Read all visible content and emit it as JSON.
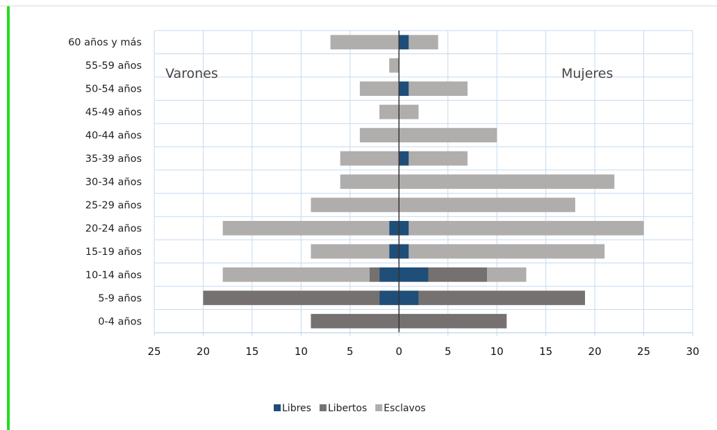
{
  "colors": {
    "libres": "#1f4e79",
    "libertos": "#767171",
    "esclavos": "#b0adad",
    "grid": "#c5d9ef",
    "axis_zero": "#333333",
    "accent_bar": "#22dd22"
  },
  "chart_data": {
    "type": "bar",
    "orientation": "horizontal",
    "layout": "population-pyramid",
    "categories": [
      "60 años y más",
      "55-59 años",
      "50-54 años",
      "45-49 años",
      "40-44 años",
      "35-39 años",
      "30-34 años",
      "25-29 años",
      "20-24 años",
      "15-19 años",
      "10-14 años",
      "5-9 años",
      "0-4 años"
    ],
    "left_label": "Varones",
    "right_label": "Mujeres",
    "x_ticks": [
      -25,
      -20,
      -15,
      -10,
      -5,
      0,
      5,
      10,
      15,
      20,
      25,
      30
    ],
    "x_tick_labels": [
      "25",
      "20",
      "15",
      "10",
      "5",
      "0",
      "5",
      "10",
      "15",
      "20",
      "25",
      "30"
    ],
    "xlim": [
      -25,
      30
    ],
    "grid": true,
    "legend_position": "bottom",
    "series": [
      {
        "name": "Libres",
        "color_key": "libres",
        "varones": [
          0,
          0,
          0,
          0,
          0,
          0,
          0,
          0,
          1,
          1,
          2,
          2,
          0
        ],
        "mujeres": [
          1,
          0,
          1,
          0,
          0,
          1,
          0,
          0,
          1,
          1,
          3,
          2,
          0
        ]
      },
      {
        "name": "Libertos",
        "color_key": "libertos",
        "varones": [
          0,
          0,
          0,
          0,
          0,
          0,
          0,
          0,
          0,
          0,
          1,
          18,
          9
        ],
        "mujeres": [
          0,
          0,
          0,
          0,
          0,
          0,
          0,
          0,
          0,
          0,
          6,
          17,
          11
        ]
      },
      {
        "name": "Esclavos",
        "color_key": "esclavos",
        "varones": [
          7,
          1,
          4,
          2,
          4,
          6,
          6,
          9,
          17,
          8,
          15,
          0,
          0
        ],
        "mujeres": [
          3,
          0,
          6,
          2,
          10,
          6,
          22,
          18,
          24,
          20,
          4,
          0,
          0
        ]
      }
    ]
  }
}
